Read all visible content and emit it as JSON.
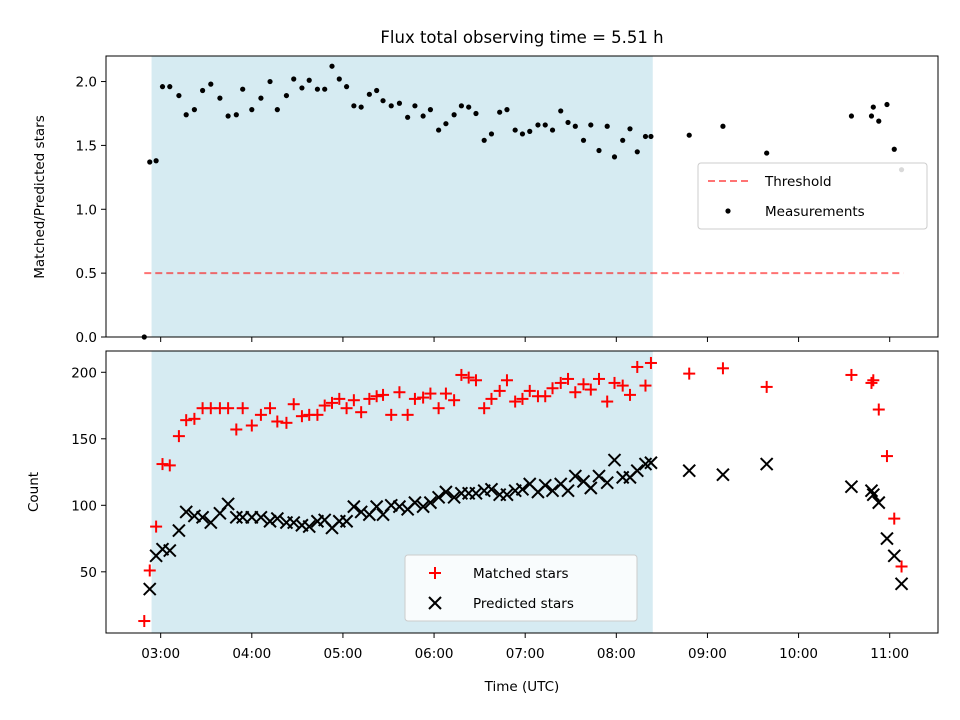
{
  "title": "Flux total observing time = 5.51 h",
  "xlabel": "Time (UTC)",
  "colors": {
    "window": "#add8e6",
    "threshold": "#ff0000",
    "matched": "#ff0000",
    "predicted": "#000000",
    "measurement": "#000000"
  },
  "chart_data": [
    {
      "type": "scatter",
      "ylabel": "Matched/Predicted stars",
      "ylim": [
        0,
        2.2
      ],
      "yticks": [
        0.0,
        0.5,
        1.0,
        1.5,
        2.0
      ],
      "ytick_labels": [
        "0.0",
        "0.5",
        "1.0",
        "1.5",
        "2.0"
      ],
      "xlim_hours": [
        2.4,
        11.53
      ],
      "observing_window_hours": [
        2.9,
        8.4
      ],
      "threshold": {
        "value": 0.5,
        "x_range_hours": [
          2.82,
          11.15
        ]
      },
      "legend": {
        "position": "center-right",
        "entries": [
          "Threshold",
          "Measurements"
        ]
      },
      "measurements": {
        "x": [
          2.82,
          2.88,
          2.95,
          3.02,
          3.1,
          3.2,
          3.28,
          3.37,
          3.46,
          3.55,
          3.65,
          3.74,
          3.83,
          3.9,
          4.0,
          4.1,
          4.2,
          4.28,
          4.38,
          4.46,
          4.55,
          4.63,
          4.72,
          4.8,
          4.88,
          4.96,
          5.04,
          5.12,
          5.2,
          5.29,
          5.37,
          5.44,
          5.53,
          5.62,
          5.71,
          5.79,
          5.88,
          5.96,
          6.05,
          6.13,
          6.22,
          6.3,
          6.38,
          6.46,
          6.55,
          6.63,
          6.72,
          6.8,
          6.89,
          6.97,
          7.05,
          7.14,
          7.22,
          7.3,
          7.39,
          7.47,
          7.55,
          7.64,
          7.72,
          7.81,
          7.9,
          7.98,
          8.07,
          8.15,
          8.23,
          8.32,
          8.38,
          8.8,
          9.17,
          9.65,
          10.58,
          10.8,
          10.82,
          10.88,
          10.97,
          11.05,
          11.13
        ],
        "y": [
          0.0,
          1.37,
          1.38,
          1.96,
          1.96,
          1.89,
          1.74,
          1.78,
          1.93,
          1.98,
          1.87,
          1.73,
          1.74,
          1.94,
          1.78,
          1.87,
          2.0,
          1.78,
          1.89,
          2.02,
          1.95,
          2.01,
          1.94,
          1.94,
          2.12,
          2.02,
          1.96,
          1.81,
          1.8,
          1.9,
          1.93,
          1.85,
          1.81,
          1.83,
          1.72,
          1.81,
          1.73,
          1.78,
          1.62,
          1.67,
          1.74,
          1.81,
          1.8,
          1.75,
          1.54,
          1.59,
          1.76,
          1.78,
          1.62,
          1.59,
          1.61,
          1.66,
          1.66,
          1.62,
          1.77,
          1.68,
          1.65,
          1.54,
          1.66,
          1.46,
          1.65,
          1.41,
          1.54,
          1.63,
          1.45,
          1.57,
          1.57,
          1.58,
          1.65,
          1.44,
          1.73,
          1.73,
          1.8,
          1.69,
          1.82,
          1.47,
          1.31
        ]
      }
    },
    {
      "type": "scatter",
      "ylabel": "Count",
      "ylim": [
        4,
        216
      ],
      "yticks": [
        50,
        100,
        150,
        200
      ],
      "ytick_labels": [
        "50",
        "100",
        "150",
        "200"
      ],
      "xlim_hours": [
        2.4,
        11.53
      ],
      "xticks_hours": [
        3,
        4,
        5,
        6,
        7,
        8,
        9,
        10,
        11
      ],
      "xtick_labels": [
        "03:00",
        "04:00",
        "05:00",
        "06:00",
        "07:00",
        "08:00",
        "09:00",
        "10:00",
        "11:00"
      ],
      "observing_window_hours": [
        2.9,
        8.4
      ],
      "legend": {
        "position": "lower-center",
        "entries": [
          "Matched stars",
          "Predicted stars"
        ]
      },
      "matched": {
        "x": [
          2.82,
          2.88,
          2.95,
          3.02,
          3.1,
          3.2,
          3.28,
          3.37,
          3.46,
          3.55,
          3.65,
          3.74,
          3.83,
          3.9,
          4.0,
          4.1,
          4.2,
          4.28,
          4.38,
          4.46,
          4.55,
          4.63,
          4.72,
          4.8,
          4.88,
          4.96,
          5.04,
          5.12,
          5.2,
          5.29,
          5.37,
          5.44,
          5.53,
          5.62,
          5.71,
          5.79,
          5.88,
          5.96,
          6.05,
          6.13,
          6.22,
          6.3,
          6.38,
          6.46,
          6.55,
          6.63,
          6.72,
          6.8,
          6.89,
          6.97,
          7.05,
          7.14,
          7.22,
          7.3,
          7.39,
          7.47,
          7.55,
          7.64,
          7.72,
          7.81,
          7.9,
          7.98,
          8.07,
          8.15,
          8.23,
          8.32,
          8.38,
          8.8,
          9.17,
          9.65,
          10.58,
          10.8,
          10.82,
          10.88,
          10.97,
          11.05,
          11.13
        ],
        "y": [
          13,
          51,
          84,
          131,
          130,
          152,
          164,
          165,
          173,
          173,
          173,
          173,
          157,
          173,
          160,
          168,
          173,
          163,
          162,
          176,
          167,
          168,
          168,
          175,
          177,
          180,
          173,
          179,
          170,
          180,
          182,
          183,
          168,
          185,
          168,
          180,
          181,
          184,
          173,
          184,
          179,
          198,
          196,
          194,
          173,
          180,
          186,
          194,
          178,
          180,
          186,
          182,
          182,
          188,
          192,
          195,
          185,
          191,
          187,
          195,
          178,
          192,
          190,
          183,
          204,
          190,
          207,
          199,
          203,
          189,
          198,
          192,
          194,
          172,
          137,
          90,
          54
        ]
      },
      "predicted": {
        "x": [
          2.88,
          2.95,
          3.02,
          3.1,
          3.2,
          3.28,
          3.37,
          3.46,
          3.55,
          3.65,
          3.74,
          3.83,
          3.9,
          4.0,
          4.1,
          4.2,
          4.28,
          4.38,
          4.46,
          4.55,
          4.63,
          4.72,
          4.8,
          4.88,
          4.96,
          5.04,
          5.12,
          5.2,
          5.29,
          5.37,
          5.44,
          5.53,
          5.62,
          5.71,
          5.79,
          5.88,
          5.96,
          6.05,
          6.13,
          6.22,
          6.3,
          6.38,
          6.46,
          6.55,
          6.63,
          6.72,
          6.8,
          6.89,
          6.97,
          7.05,
          7.14,
          7.22,
          7.3,
          7.39,
          7.47,
          7.55,
          7.64,
          7.72,
          7.81,
          7.9,
          7.98,
          8.07,
          8.15,
          8.23,
          8.32,
          8.38,
          8.8,
          9.17,
          9.65,
          10.58,
          10.8,
          10.82,
          10.88,
          10.97,
          11.05,
          11.13
        ],
        "y": [
          37,
          62,
          67,
          66,
          81,
          95,
          92,
          91,
          87,
          94,
          101,
          91,
          91,
          91,
          91,
          88,
          90,
          87,
          87,
          85,
          84,
          88,
          89,
          83,
          88,
          88,
          99,
          95,
          93,
          99,
          93,
          100,
          99,
          97,
          102,
          99,
          102,
          106,
          110,
          106,
          109,
          109,
          109,
          111,
          112,
          108,
          108,
          111,
          112,
          116,
          110,
          115,
          111,
          116,
          111,
          122,
          118,
          113,
          122,
          117,
          134,
          121,
          121,
          126,
          131,
          132,
          126,
          123,
          131,
          114,
          111,
          108,
          102,
          75,
          62,
          41
        ]
      }
    }
  ]
}
